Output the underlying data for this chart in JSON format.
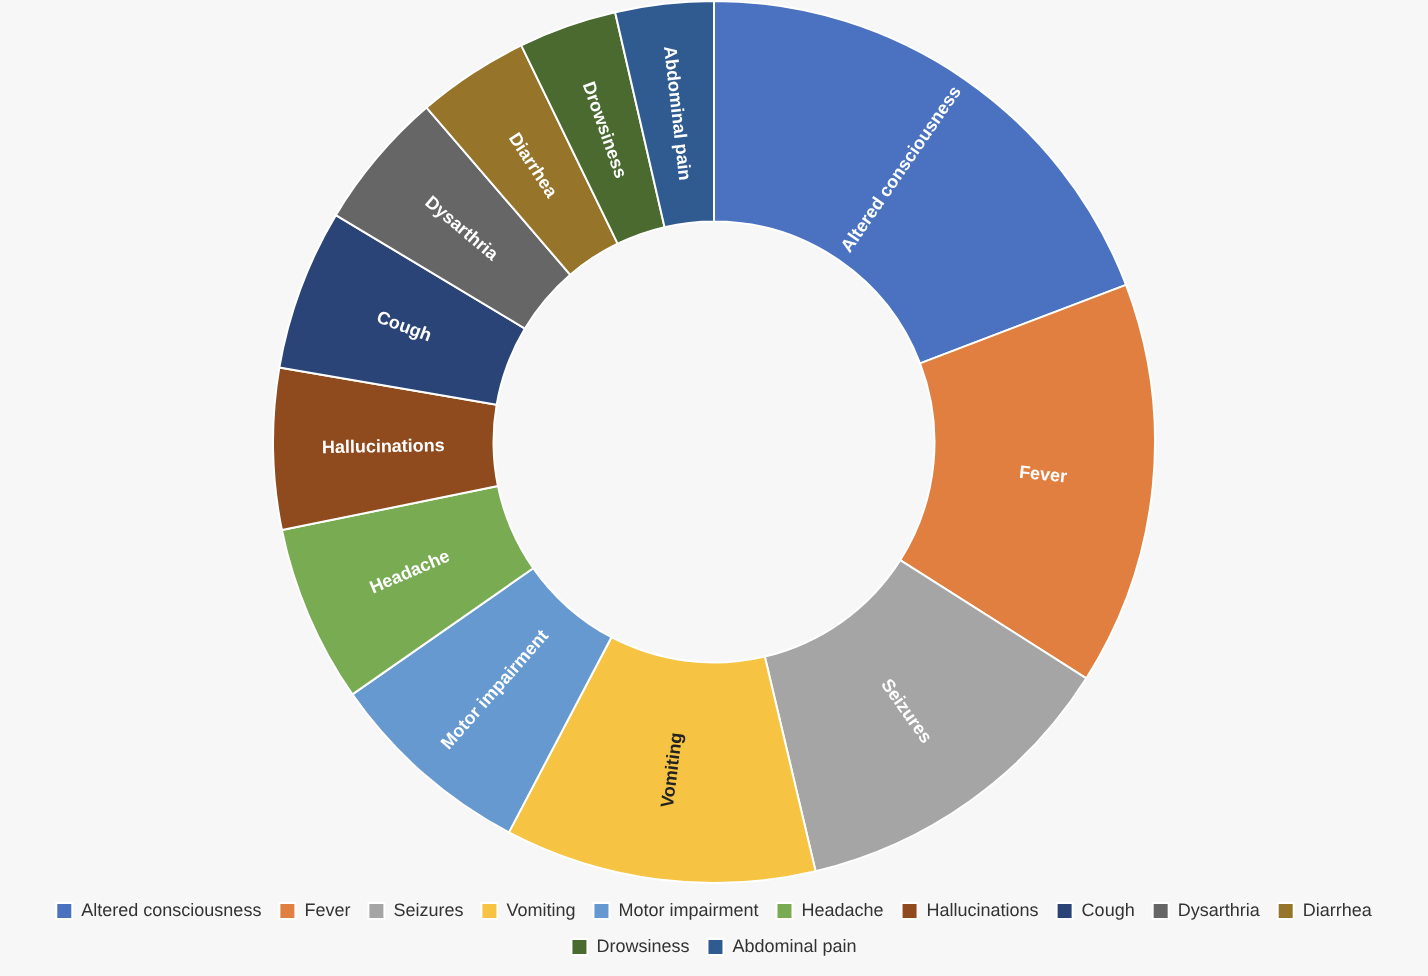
{
  "chart_data": {
    "type": "donut",
    "categories": [
      "Altered consciousness",
      "Fever",
      "Seizures",
      "Vomiting",
      "Motor impairment",
      "Headache",
      "Hallucinations",
      "Cough",
      "Dysarthria",
      "Diarrhea",
      "Drowsiness",
      "Abdominal pain"
    ],
    "values": [
      19.2,
      14.8,
      12.3,
      11.4,
      7.6,
      6.5,
      5.9,
      5.9,
      5.1,
      4.1,
      3.6,
      3.6
    ],
    "colors": [
      "#4a72c0",
      "#e07f3f",
      "#a5a5a5",
      "#f6c342",
      "#6699d0",
      "#79ab52",
      "#8f4a1d",
      "#2b4477",
      "#666666",
      "#96742a",
      "#4a6a30",
      "#2f5b91"
    ],
    "legend": "bottom"
  }
}
